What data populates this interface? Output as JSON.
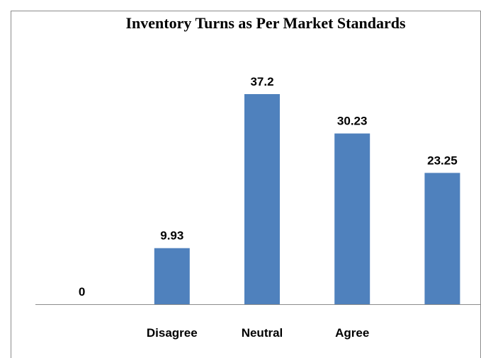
{
  "chart_data": {
    "type": "bar",
    "title": "Inventory Turns as Per Market Standards",
    "categories": [
      null,
      "Disagree",
      "Neutral",
      "Agree",
      null
    ],
    "values": [
      0,
      9.93,
      37.2,
      30.23,
      23.25
    ],
    "color": "#4f81bd"
  }
}
